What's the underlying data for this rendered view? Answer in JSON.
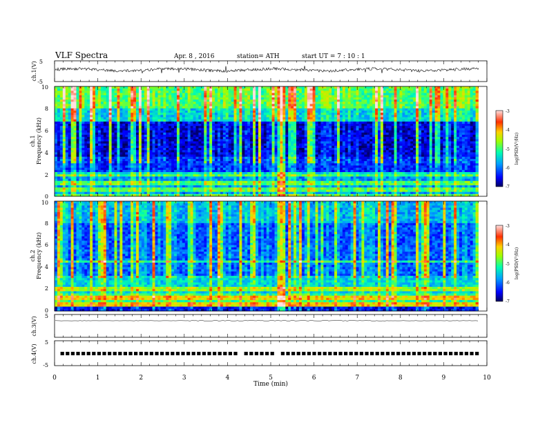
{
  "header": {
    "title": "VLF  Spectra",
    "date": "Apr. 8  , 2016",
    "station": "station= ATH",
    "start": "start  UT  =    7  : 10 : 1"
  },
  "chart_data": [
    {
      "type": "line",
      "panel": "ch1",
      "ylabel": "ch.1(V)",
      "ylim": [
        -5,
        5
      ],
      "yticks": [
        "5",
        "-5"
      ],
      "xlim": [
        0,
        10
      ],
      "trace_color": "#000000"
    },
    {
      "type": "heatmap",
      "panel": "spec1",
      "ylabel": [
        "ch.1",
        "Frequency  (kHz)"
      ],
      "ylim": [
        0,
        10
      ],
      "yticks": [
        "0",
        "2",
        "4",
        "6",
        "8",
        "10"
      ],
      "xlim": [
        0,
        9.8
      ],
      "colorbar": {
        "label": "log(PSD(V²/Hz)",
        "range": [
          -7,
          -3
        ],
        "ticks": [
          "-3",
          "-4",
          "-5",
          "-6",
          "-7"
        ]
      },
      "features": {
        "burst_time_min": 5.2
      }
    },
    {
      "type": "heatmap",
      "panel": "spec2",
      "ylabel": [
        "ch.2",
        "Frequency  (kHz)"
      ],
      "ylim": [
        0,
        10
      ],
      "yticks": [
        "0",
        "2",
        "4",
        "6",
        "8",
        "10"
      ],
      "xlim": [
        0,
        9.8
      ],
      "colorbar": {
        "label": "log(PSD(V²/Hz)",
        "range": [
          -7,
          -3
        ],
        "ticks": [
          "-3",
          "-4",
          "-5",
          "-6",
          "-7"
        ]
      },
      "features": {
        "burst_time_min": 5.2
      }
    },
    {
      "type": "line",
      "panel": "ch3",
      "ylabel": "ch.3(V)",
      "ylim": [
        -5,
        5
      ],
      "yticks": [
        "5"
      ],
      "xlim": [
        0,
        10
      ]
    },
    {
      "type": "line",
      "panel": "ch4",
      "ylabel": "ch.4(V)",
      "ylim": [
        -5,
        5
      ],
      "yticks": [
        "5",
        "-5"
      ],
      "xlim": [
        0,
        10
      ]
    }
  ],
  "xaxis": {
    "label": "Time  (min)",
    "ticks": [
      "0",
      "1",
      "2",
      "3",
      "4",
      "5",
      "6",
      "7",
      "8",
      "9",
      "10"
    ],
    "range": [
      0,
      10
    ]
  }
}
